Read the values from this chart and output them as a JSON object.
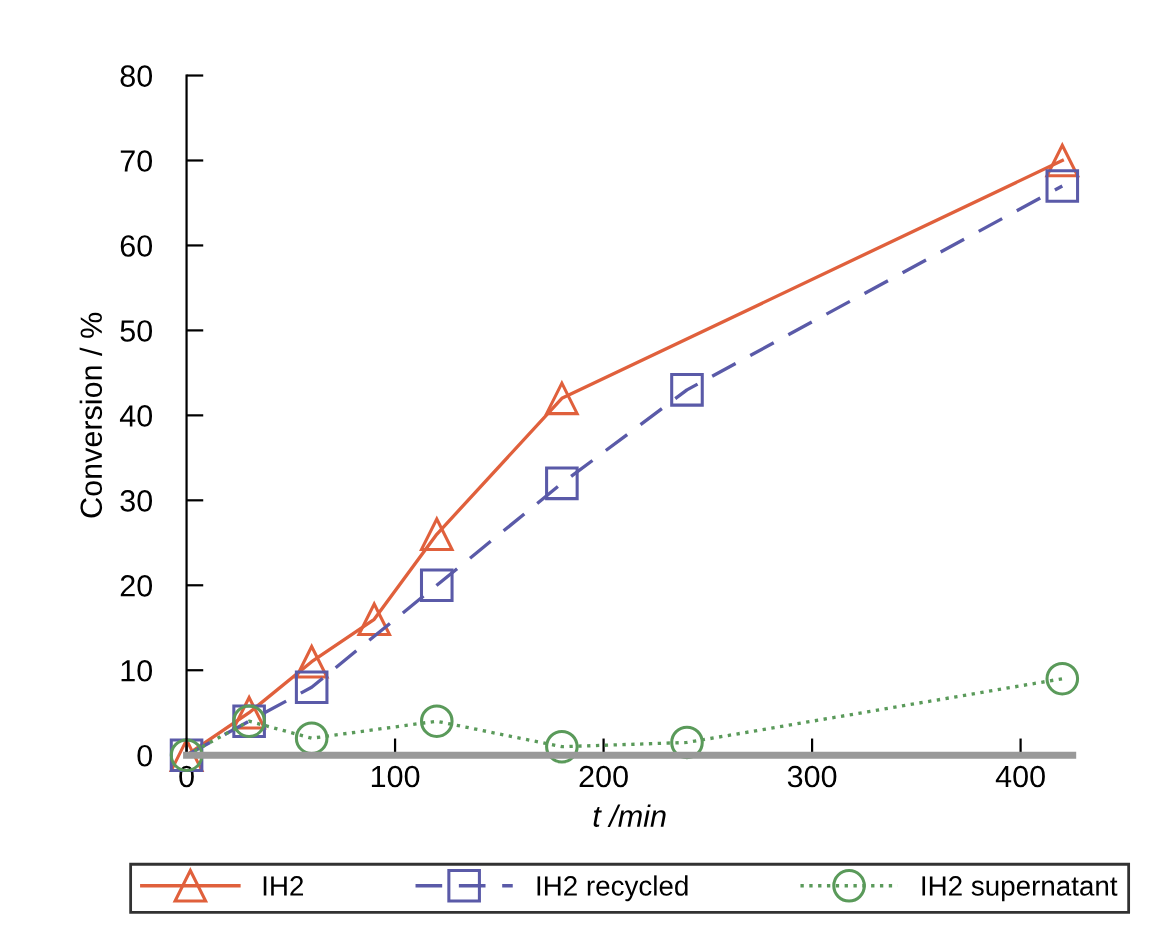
{
  "chart_data": {
    "type": "line",
    "xlabel": "t /min",
    "ylabel": "Conversion / %",
    "xlim": [
      0,
      425
    ],
    "xticks": [
      0,
      100,
      200,
      300,
      400
    ],
    "ylim": [
      0,
      80
    ],
    "yticks": [
      0,
      10,
      20,
      30,
      40,
      50,
      60,
      70,
      80
    ],
    "grid": false,
    "legend": "bottom",
    "series": [
      {
        "name": "IH2",
        "color": "#e0603c",
        "marker": "triangle",
        "line_style": "solid",
        "x": [
          0,
          30,
          60,
          90,
          120,
          180,
          420
        ],
        "values": [
          0,
          5,
          11,
          16,
          26,
          42,
          70
        ]
      },
      {
        "name": "IH2 recycled",
        "color": "#5a5aa8",
        "marker": "square",
        "line_style": "dashed",
        "x": [
          0,
          30,
          60,
          120,
          180,
          240,
          420
        ],
        "values": [
          0,
          4,
          8,
          20,
          32,
          43,
          67
        ]
      },
      {
        "name": "IH2 supernatant",
        "color": "#5a9a5a",
        "marker": "circle",
        "line_style": "dotted",
        "x": [
          0,
          30,
          60,
          120,
          180,
          240,
          420
        ],
        "values": [
          0,
          4,
          2,
          4,
          1,
          1.5,
          9
        ]
      }
    ]
  }
}
